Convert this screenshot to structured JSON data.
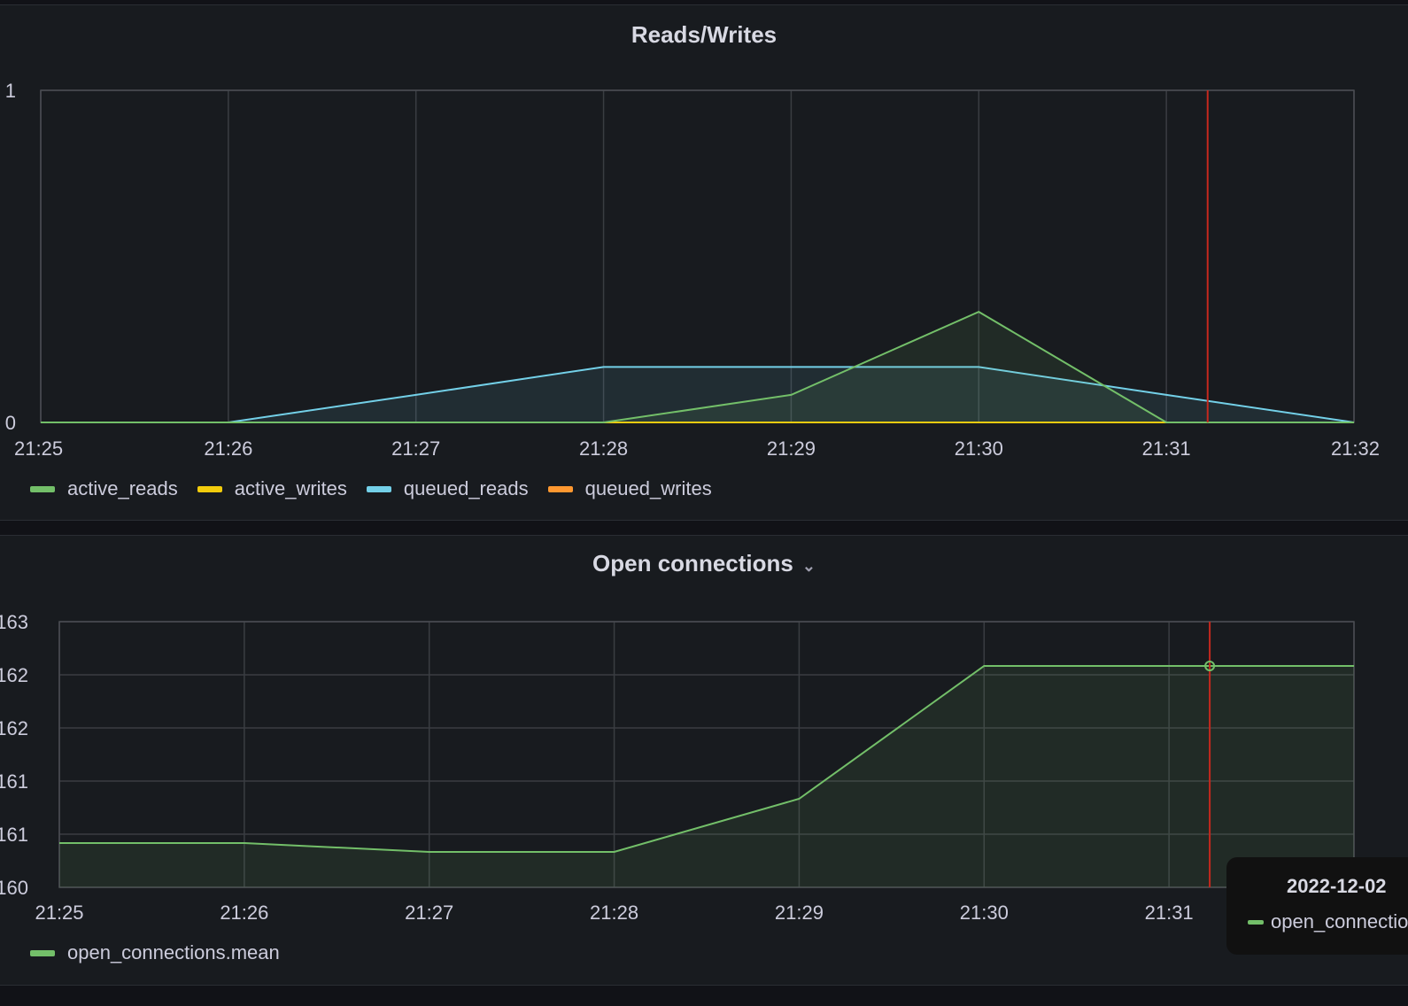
{
  "panels": [
    {
      "title": "Reads/Writes"
    },
    {
      "title": "Open connections"
    }
  ],
  "tooltip": {
    "time": "2022-12-02",
    "series": "open_connections.mean"
  },
  "chart_data": [
    {
      "type": "line",
      "title": "Reads/Writes",
      "x": [
        "21:25",
        "21:26",
        "21:27",
        "21:28",
        "21:29",
        "21:30",
        "21:31",
        "21:32"
      ],
      "ylim": [
        0,
        1
      ],
      "yticks": [
        "0",
        "1"
      ],
      "grid": true,
      "legend": "bottom-left",
      "hover_x_minute": 6.22,
      "series": [
        {
          "name": "active_reads",
          "color": "#73bf69",
          "values": [
            0,
            0,
            0,
            0,
            0.083,
            0.333,
            0,
            0
          ]
        },
        {
          "name": "active_writes",
          "color": "#f2cc0c",
          "values": [
            0,
            0,
            0,
            0,
            0,
            0,
            0,
            0
          ]
        },
        {
          "name": "queued_reads",
          "color": "#73d0e8",
          "values": [
            0,
            0,
            0.083,
            0.167,
            0.167,
            0.167,
            0.083,
            0
          ]
        },
        {
          "name": "queued_writes",
          "color": "#ff9830",
          "values": [
            0,
            0,
            0,
            0,
            0,
            0,
            0,
            0
          ]
        }
      ]
    },
    {
      "type": "line",
      "title": "Open connections",
      "x": [
        "21:25",
        "21:26",
        "21:27",
        "21:28",
        "21:29",
        "21:30",
        "21:31",
        "21:32"
      ],
      "xticks_shown": [
        "21:25",
        "21:26",
        "21:27",
        "21:28",
        "21:29",
        "21:30",
        "21:31"
      ],
      "ylim": [
        160,
        163
      ],
      "ytick_values": [
        160,
        160.6,
        161.2,
        161.8,
        162.4,
        163
      ],
      "yticks": [
        "160",
        "161",
        "161",
        "162",
        "162",
        "163"
      ],
      "grid": true,
      "legend": "bottom-left",
      "hover_x_minute": 6.22,
      "series": [
        {
          "name": "open_connections.mean",
          "color": "#73bf69",
          "values": [
            160.5,
            160.5,
            160.4,
            160.4,
            161.0,
            162.5,
            162.5,
            162.5
          ]
        }
      ]
    }
  ]
}
